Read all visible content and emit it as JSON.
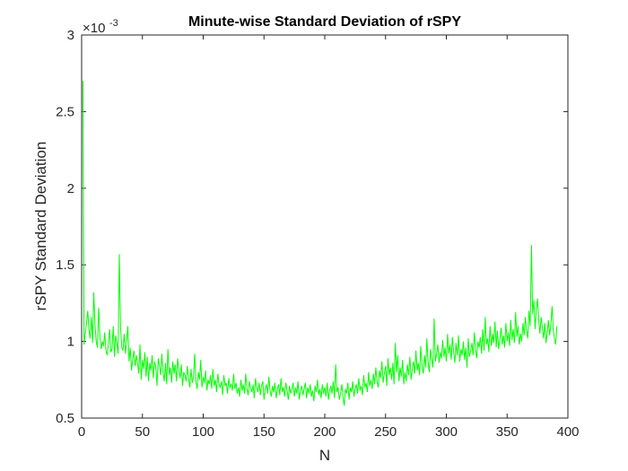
{
  "chart_data": {
    "type": "line",
    "title": "Minute-wise Standard Deviation of rSPY",
    "xlabel": "N",
    "ylabel": "rSPY Standard Deviation",
    "xlim": [
      0,
      400
    ],
    "ylim": [
      0.5,
      3
    ],
    "y_exponent": {
      "base": "×10",
      "power": "-3"
    },
    "grid": false,
    "x_ticks": [
      "0",
      "50",
      "100",
      "150",
      "200",
      "250",
      "300",
      "350",
      "400"
    ],
    "y_ticks": [
      "0.5",
      "1",
      "1.5",
      "2",
      "2.5",
      "3"
    ],
    "x_tick_values": [
      0,
      50,
      100,
      150,
      200,
      250,
      300,
      350,
      400
    ],
    "y_tick_values": [
      0.5,
      1,
      1.5,
      2,
      2.5,
      3
    ],
    "series": [
      {
        "name": "rSPY std",
        "color": "#00ff00",
        "x_start": 1,
        "x_step": 1,
        "values": [
          2.7,
          0.98,
          1.05,
          1.12,
          1.2,
          1.08,
          1.02,
          1.16,
          0.99,
          1.32,
          1.1,
          1.0,
          0.96,
          1.22,
          1.04,
          0.95,
          1.0,
          0.97,
          1.06,
          0.94,
          0.91,
          0.99,
          1.08,
          0.93,
          0.95,
          1.1,
          0.9,
          1.04,
          0.99,
          0.92,
          1.57,
          1.09,
          0.96,
          0.94,
          1.05,
          0.92,
          1.0,
          1.1,
          0.87,
          0.96,
          0.81,
          0.88,
          0.94,
          0.84,
          0.91,
          0.86,
          0.79,
          0.98,
          0.75,
          0.88,
          0.82,
          0.93,
          0.77,
          0.9,
          0.74,
          0.86,
          0.81,
          0.91,
          0.76,
          0.87,
          0.83,
          0.71,
          0.89,
          0.84,
          0.78,
          0.92,
          0.8,
          0.74,
          0.86,
          0.72,
          0.95,
          0.78,
          0.83,
          0.73,
          0.87,
          0.79,
          0.85,
          0.74,
          0.89,
          0.81,
          0.76,
          0.85,
          0.71,
          0.8,
          0.78,
          0.74,
          0.84,
          0.76,
          0.7,
          0.82,
          0.73,
          0.77,
          0.92,
          0.74,
          0.69,
          0.8,
          0.75,
          0.88,
          0.7,
          0.77,
          0.73,
          0.81,
          0.68,
          0.75,
          0.72,
          0.78,
          0.69,
          0.82,
          0.71,
          0.75,
          0.67,
          0.79,
          0.72,
          0.7,
          0.74,
          0.65,
          0.78,
          0.71,
          0.73,
          0.66,
          0.76,
          0.7,
          0.72,
          0.68,
          0.79,
          0.69,
          0.73,
          0.66,
          0.7,
          0.64,
          0.75,
          0.68,
          0.72,
          0.66,
          0.79,
          0.69,
          0.65,
          0.74,
          0.7,
          0.67,
          0.72,
          0.63,
          0.76,
          0.7,
          0.67,
          0.73,
          0.65,
          0.71,
          0.74,
          0.62,
          0.69,
          0.72,
          0.66,
          0.77,
          0.68,
          0.64,
          0.71,
          0.67,
          0.73,
          0.63,
          0.69,
          0.72,
          0.65,
          0.76,
          0.67,
          0.7,
          0.64,
          0.73,
          0.68,
          0.62,
          0.71,
          0.66,
          0.69,
          0.73,
          0.64,
          0.7,
          0.66,
          0.74,
          0.62,
          0.68,
          0.71,
          0.65,
          0.69,
          0.73,
          0.63,
          0.7,
          0.66,
          0.72,
          0.64,
          0.68,
          0.61,
          0.71,
          0.67,
          0.75,
          0.65,
          0.69,
          0.63,
          0.72,
          0.66,
          0.7,
          0.64,
          0.73,
          0.62,
          0.68,
          0.71,
          0.66,
          0.74,
          0.63,
          0.85,
          0.67,
          0.7,
          0.62,
          0.66,
          0.72,
          0.64,
          0.58,
          0.69,
          0.66,
          0.73,
          0.62,
          0.7,
          0.67,
          0.74,
          0.64,
          0.69,
          0.72,
          0.66,
          0.76,
          0.68,
          0.71,
          0.65,
          0.78,
          0.7,
          0.73,
          0.67,
          0.8,
          0.71,
          0.75,
          0.69,
          0.79,
          0.72,
          0.83,
          0.74,
          0.7,
          0.81,
          0.76,
          0.87,
          0.73,
          0.79,
          0.84,
          0.71,
          0.89,
          0.78,
          0.83,
          0.75,
          0.86,
          0.72,
          0.99,
          0.8,
          0.91,
          0.74,
          0.83,
          0.77,
          0.88,
          0.72,
          0.8,
          0.74,
          0.85,
          0.78,
          0.9,
          0.75,
          0.82,
          0.87,
          0.79,
          0.94,
          0.81,
          0.86,
          0.78,
          0.97,
          0.84,
          0.79,
          0.91,
          0.83,
          1.02,
          0.86,
          0.8,
          0.95,
          0.88,
          0.83,
          1.15,
          0.87,
          0.92,
          0.98,
          0.86,
          0.93,
          0.89,
          1.01,
          0.9,
          0.96,
          0.87,
          1.05,
          0.92,
          0.98,
          0.88,
          1.03,
          0.93,
          0.86,
          0.99,
          0.91,
          1.04,
          0.87,
          0.95,
          0.91,
          1.0,
          0.88,
          0.96,
          0.83,
          1.02,
          0.9,
          0.94,
          0.99,
          0.91,
          1.06,
          0.95,
          0.89,
          1.0,
          0.96,
          1.03,
          0.92,
          1.08,
          0.94,
          1.16,
          0.98,
          1.02,
          0.93,
          1.1,
          0.97,
          1.05,
          0.99,
          1.13,
          0.96,
          1.07,
          0.95,
          1.01,
          1.09,
          0.98,
          1.04,
          0.96,
          1.12,
          1.0,
          1.06,
          0.97,
          1.14,
          1.01,
          1.08,
          0.99,
          1.19,
          1.03,
          1.1,
          0.98,
          1.05,
          1.0,
          1.12,
          1.04,
          1.16,
          1.07,
          1.02,
          1.2,
          1.1,
          1.63,
          1.18,
          1.27,
          1.08,
          1.21,
          1.28,
          1.14,
          1.05,
          1.16,
          1.09,
          1.02,
          1.12,
          0.99,
          1.06,
          1.14,
          1.04,
          1.11,
          1.23,
          1.07,
          1.02,
          0.98,
          1.1
        ]
      }
    ]
  }
}
